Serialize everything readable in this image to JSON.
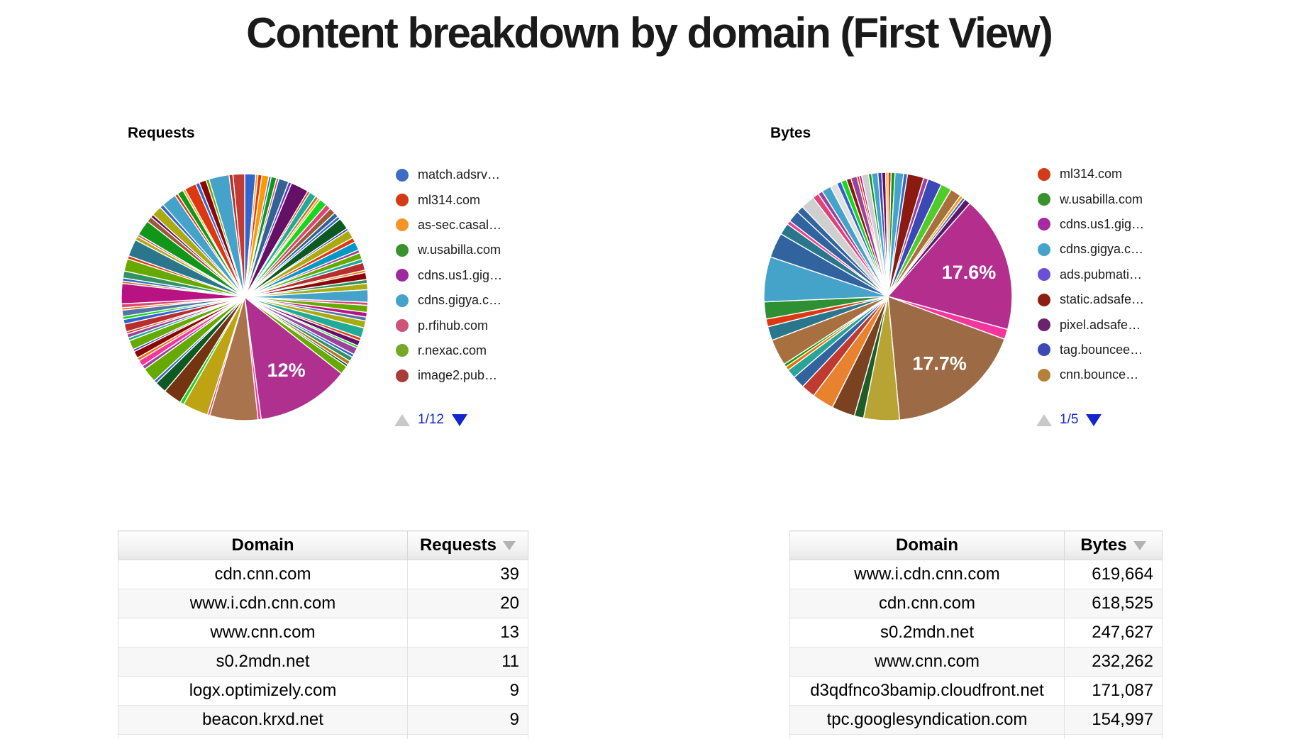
{
  "page": {
    "title": "Content breakdown by domain (First View)"
  },
  "sections": [
    {
      "name": "requests",
      "heading": "Requests",
      "legend_items": [
        {
          "label": "match.adsrv…",
          "color": "#3d6cc4"
        },
        {
          "label": "ml314.com",
          "color": "#d13b18"
        },
        {
          "label": "as-sec.casal…",
          "color": "#f59426"
        },
        {
          "label": "w.usabilla.com",
          "color": "#3a9130"
        },
        {
          "label": "cdns.us1.gig…",
          "color": "#9d2b9e"
        },
        {
          "label": "cdns.gigya.c…",
          "color": "#45a2c9"
        },
        {
          "label": "p.rfihub.com",
          "color": "#ce5377"
        },
        {
          "label": "r.nexac.com",
          "color": "#74a927"
        },
        {
          "label": "image2.pub…",
          "color": "#a83c3a"
        }
      ],
      "pagination": {
        "text": "1/12"
      },
      "table": {
        "col_domain": "Domain",
        "col_value": "Requests",
        "rows": [
          {
            "domain": "cdn.cnn.com",
            "value": "39"
          },
          {
            "domain": "www.i.cdn.cnn.com",
            "value": "20"
          },
          {
            "domain": "www.cnn.com",
            "value": "13"
          },
          {
            "domain": "s0.2mdn.net",
            "value": "11"
          },
          {
            "domain": "logx.optimizely.com",
            "value": "9"
          },
          {
            "domain": "beacon.krxd.net",
            "value": "9"
          }
        ]
      }
    },
    {
      "name": "bytes",
      "heading": "Bytes",
      "legend_items": [
        {
          "label": "ml314.com",
          "color": "#d13b18"
        },
        {
          "label": "w.usabilla.com",
          "color": "#3a9130"
        },
        {
          "label": "cdns.us1.gig…",
          "color": "#a62ba0"
        },
        {
          "label": "cdns.gigya.c…",
          "color": "#45a2c9"
        },
        {
          "label": "ads.pubmati…",
          "color": "#6b4fd6"
        },
        {
          "label": "static.adsafe…",
          "color": "#8c1f12"
        },
        {
          "label": "pixel.adsafe…",
          "color": "#6b2370"
        },
        {
          "label": "tag.bouncee…",
          "color": "#3c48b5"
        },
        {
          "label": "cnn.bounce…",
          "color": "#b5813a"
        }
      ],
      "pagination": {
        "text": "1/5"
      },
      "table": {
        "col_domain": "Domain",
        "col_value": "Bytes",
        "rows": [
          {
            "domain": "www.i.cdn.cnn.com",
            "value": "619,664"
          },
          {
            "domain": "cdn.cnn.com",
            "value": "618,525"
          },
          {
            "domain": "s0.2mdn.net",
            "value": "247,627"
          },
          {
            "domain": "www.cnn.com",
            "value": "232,262"
          },
          {
            "domain": "d3qdfnco3bamip.cloudfront.net",
            "value": "171,087"
          },
          {
            "domain": "tpc.googlesyndication.com",
            "value": "154,997"
          }
        ]
      }
    }
  ],
  "chart_data": [
    {
      "type": "pie",
      "title": "Requests",
      "legend_position": "right",
      "visible_slice_labels": [
        "12%"
      ],
      "slices": [
        [
          1.4,
          "#3366cc"
        ],
        [
          0.3,
          "#ff9900"
        ],
        [
          0.5,
          "#dc3912"
        ],
        [
          0.9,
          "#ff9900"
        ],
        [
          0.3,
          "#3366cc"
        ],
        [
          0.7,
          "#109618"
        ],
        [
          0.3,
          "#dd4477"
        ],
        [
          1.3,
          "#316395"
        ],
        [
          0.4,
          "#6633cc"
        ],
        [
          2.3,
          "#651067"
        ],
        [
          0.3,
          "#dc3912"
        ],
        [
          0.9,
          "#22aa99"
        ],
        [
          0.4,
          "#b77322"
        ],
        [
          0.3,
          "#ff9900"
        ],
        [
          1.0,
          "#16d620"
        ],
        [
          0.7,
          "#dd4477"
        ],
        [
          0.8,
          "#9c5935"
        ],
        [
          0.6,
          "#316395"
        ],
        [
          0.4,
          "#3366cc"
        ],
        [
          1.5,
          "#0c5922"
        ],
        [
          0.3,
          "#3b3eac"
        ],
        [
          1.1,
          "#aaaa11"
        ],
        [
          0.6,
          "#dc3912"
        ],
        [
          1.1,
          "#0099c6"
        ],
        [
          0.4,
          "#994499"
        ],
        [
          0.8,
          "#66aa00"
        ],
        [
          0.5,
          "#22aa99"
        ],
        [
          1.0,
          "#b82e2e"
        ],
        [
          0.3,
          "#e67300"
        ],
        [
          0.9,
          "#8b0707"
        ],
        [
          0.5,
          "#329262"
        ],
        [
          0.8,
          "#aaaa11"
        ],
        [
          1.6,
          "#45a2c9"
        ],
        [
          0.4,
          "#dd4477"
        ],
        [
          0.9,
          "#66aa00"
        ],
        [
          0.6,
          "#b91383"
        ],
        [
          0.5,
          "#5574a6"
        ],
        [
          0.9,
          "#aaaa11"
        ],
        [
          1.3,
          "#22aa99"
        ],
        [
          0.4,
          "#dc3912"
        ],
        [
          0.7,
          "#651067"
        ],
        [
          0.3,
          "#16d620"
        ],
        [
          0.9,
          "#994499"
        ],
        [
          0.4,
          "#3366cc"
        ],
        [
          0.6,
          "#329262"
        ],
        [
          0.5,
          "#b77322"
        ],
        [
          0.3,
          "#0c5922"
        ],
        [
          1.1,
          "#66aa00"
        ],
        [
          12.0,
          "#b03090",
          "12%"
        ],
        [
          0.4,
          "#f4359e"
        ],
        [
          6.2,
          "#a8734d"
        ],
        [
          0.3,
          "#dd4477"
        ],
        [
          3.3,
          "#bea413"
        ],
        [
          0.5,
          "#16d620"
        ],
        [
          2.4,
          "#743411"
        ],
        [
          1.5,
          "#0c5922"
        ],
        [
          0.4,
          "#3366cc"
        ],
        [
          1.9,
          "#66aa00"
        ],
        [
          0.5,
          "#994499"
        ],
        [
          0.8,
          "#f4359e"
        ],
        [
          0.4,
          "#e67300"
        ],
        [
          0.9,
          "#8b0707"
        ],
        [
          0.3,
          "#3b3eac"
        ],
        [
          1.2,
          "#66aa00"
        ],
        [
          0.4,
          "#22aa99"
        ],
        [
          0.5,
          "#994499"
        ],
        [
          0.3,
          "#dc3912"
        ],
        [
          1.0,
          "#b82e2e"
        ],
        [
          0.6,
          "#3366cc"
        ],
        [
          0.4,
          "#16d620"
        ],
        [
          0.8,
          "#5574a6"
        ],
        [
          0.3,
          "#e67300"
        ],
        [
          0.5,
          "#dd4477"
        ],
        [
          2.6,
          "#b91383"
        ],
        [
          0.3,
          "#b77322"
        ],
        [
          0.4,
          "#3366cc"
        ],
        [
          0.9,
          "#329262"
        ],
        [
          1.6,
          "#66aa00"
        ],
        [
          0.4,
          "#dc3912"
        ],
        [
          2.2,
          "#2a778d"
        ],
        [
          0.5,
          "#aaaa11"
        ],
        [
          0.3,
          "#dd4477"
        ],
        [
          2.0,
          "#109618"
        ],
        [
          0.7,
          "#9c5935"
        ],
        [
          0.4,
          "#651067"
        ],
        [
          1.3,
          "#aaaa11"
        ],
        [
          0.5,
          "#3366cc"
        ],
        [
          1.9,
          "#45a2c9"
        ],
        [
          0.4,
          "#dc3912"
        ],
        [
          0.8,
          "#109618"
        ],
        [
          0.3,
          "#ff9900"
        ],
        [
          1.5,
          "#dc3912"
        ],
        [
          0.5,
          "#3366cc"
        ],
        [
          0.9,
          "#8b0707"
        ],
        [
          0.4,
          "#66aa00"
        ],
        [
          2.6,
          "#45a2c9"
        ],
        [
          0.5,
          "#b82e2e"
        ],
        [
          1.5,
          "#c23b32"
        ]
      ]
    },
    {
      "type": "pie",
      "title": "Bytes",
      "legend_position": "right",
      "visible_slice_labels": [
        "17.6%",
        "17.7%"
      ],
      "slices": [
        [
          0.4,
          "#dc3912"
        ],
        [
          0.5,
          "#109618"
        ],
        [
          1.1,
          "#45a2c9"
        ],
        [
          0.5,
          "#3366cc"
        ],
        [
          2.1,
          "#8b1a10"
        ],
        [
          0.6,
          "#994499"
        ],
        [
          1.8,
          "#3c48b5"
        ],
        [
          1.4,
          "#4fcc2a"
        ],
        [
          1.4,
          "#a9703f"
        ],
        [
          0.4,
          "#ff9900"
        ],
        [
          0.35,
          "#3366cc"
        ],
        [
          0.8,
          "#5c1a66"
        ],
        [
          17.6,
          "#b32e8d",
          "17.6%"
        ],
        [
          1.3,
          "#f4359e"
        ],
        [
          17.7,
          "#9c6b45",
          "17.7%"
        ],
        [
          4.6,
          "#b8a335"
        ],
        [
          1.2,
          "#1e5c28"
        ],
        [
          3.0,
          "#7a4220"
        ],
        [
          2.8,
          "#e8822e"
        ],
        [
          1.8,
          "#bf3b32"
        ],
        [
          1.6,
          "#31639e"
        ],
        [
          1.2,
          "#2aa398"
        ],
        [
          0.5,
          "#e67300"
        ],
        [
          0.4,
          "#109618"
        ],
        [
          3.4,
          "#a9703f"
        ],
        [
          1.8,
          "#2a778d"
        ],
        [
          1.0,
          "#dc3912"
        ],
        [
          2.2,
          "#2f8f33"
        ],
        [
          5.8,
          "#45a2c9"
        ],
        [
          3.2,
          "#31639e"
        ],
        [
          1.5,
          "#2a778d"
        ],
        [
          0.5,
          "#e84393"
        ],
        [
          1.5,
          "#31639e"
        ],
        [
          0.9,
          "#31639e"
        ],
        [
          1.8,
          "#cfcfcf"
        ],
        [
          0.8,
          "#dd4477"
        ],
        [
          0.6,
          "#994499"
        ],
        [
          1.2,
          "#45a2c9"
        ],
        [
          0.9,
          "#e0e0e0"
        ],
        [
          0.6,
          "#3366cc"
        ],
        [
          0.7,
          "#16d620"
        ],
        [
          0.6,
          "#8b1a10"
        ],
        [
          0.8,
          "#994499"
        ],
        [
          0.3,
          "#dc3912"
        ],
        [
          0.3,
          "#b91383"
        ],
        [
          0.9,
          "#cfcfcf"
        ],
        [
          0.4,
          "#109618"
        ],
        [
          0.8,
          "#45a2c9"
        ],
        [
          0.5,
          "#3c48b5"
        ],
        [
          0.5,
          "#651067"
        ],
        [
          0.3,
          "#ff9900"
        ]
      ]
    }
  ],
  "colors": {
    "pagination_blue": "#1326cc",
    "pagination_gray": "#c9c9c9",
    "sort_arrow_gray": "#b3b3b3",
    "big_slice_requests": "#b03090",
    "big_slice_bytes_1": "#b32e8d",
    "big_slice_bytes_2": "#9c6b45"
  }
}
